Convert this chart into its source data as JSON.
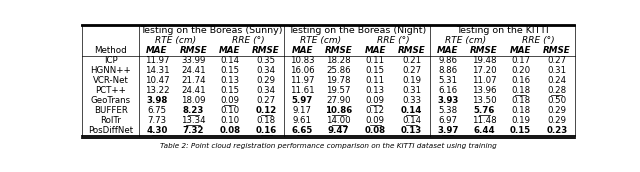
{
  "caption": "Table 2: Point cloud registration performance comparison on the KITTI dataset using training",
  "section_headers": [
    "Testing on the Boreas (Sunny)",
    "Testing on the Boreas (Night)",
    "Testing on the KITTI"
  ],
  "rte_rre_headers": [
    "RTE (cm)",
    "RRE (°)",
    "RTE (cm)",
    "RRE (°)",
    "RTE (cm)",
    "RRE (°)"
  ],
  "col_headers": [
    "Method",
    "MAE",
    "RMSE",
    "MAE",
    "RMSE",
    "MAE",
    "RMSE",
    "MAE",
    "RMSE",
    "MAE",
    "RMSE",
    "MAE",
    "RMSE"
  ],
  "rows": [
    [
      "ICP",
      "11.97",
      "33.99",
      "0.14",
      "0.35",
      "10.83",
      "18.28",
      "0.11",
      "0.21",
      "9.86",
      "19.48",
      "0.17",
      "0.27"
    ],
    [
      "HGNN++",
      "14.31",
      "24.41",
      "0.15",
      "0.34",
      "16.06",
      "25.86",
      "0.15",
      "0.27",
      "8.86",
      "17.20",
      "0.20",
      "0.31"
    ],
    [
      "VCR-Net",
      "10.47",
      "21.74",
      "0.13",
      "0.29",
      "11.97",
      "19.78",
      "0.11",
      "0.19",
      "5.31",
      "11.07",
      "0.16",
      "0.24"
    ],
    [
      "PCT++",
      "13.22",
      "24.41",
      "0.15",
      "0.34",
      "11.61",
      "19.57",
      "0.13",
      "0.31",
      "6.16",
      "13.96",
      "0.18",
      "0.28"
    ],
    [
      "GeoTrans",
      "3.98",
      "18.09",
      "0.09",
      "0.27",
      "5.97",
      "27.90",
      "0.09",
      "0.33",
      "3.93",
      "13.50",
      "0.18",
      "0.50"
    ],
    [
      "BUFFER",
      "6.75",
      "8.23",
      "0.10",
      "0.12",
      "9.17",
      "10.86",
      "0.12",
      "0.14",
      "5.38",
      "5.76",
      "0.18",
      "0.29"
    ],
    [
      "RoITr",
      "7.73",
      "13.34",
      "0.10",
      "0.18",
      "9.61",
      "14.00",
      "0.09",
      "0.14",
      "6.97",
      "11.48",
      "0.19",
      "0.29"
    ],
    [
      "PosDiffNet",
      "4.30",
      "7.32",
      "0.08",
      "0.16",
      "6.65",
      "9.47",
      "0.08",
      "0.13",
      "3.97",
      "6.44",
      "0.15",
      "0.23"
    ]
  ],
  "bold": [
    [
      false,
      false,
      false,
      false,
      false,
      false,
      false,
      false,
      false,
      false,
      false,
      false,
      false
    ],
    [
      false,
      false,
      false,
      false,
      false,
      false,
      false,
      false,
      false,
      false,
      false,
      false,
      false
    ],
    [
      false,
      false,
      false,
      false,
      false,
      false,
      false,
      false,
      false,
      false,
      false,
      false,
      false
    ],
    [
      false,
      false,
      false,
      false,
      false,
      false,
      false,
      false,
      false,
      false,
      false,
      false,
      false
    ],
    [
      false,
      true,
      false,
      false,
      false,
      true,
      false,
      false,
      false,
      true,
      false,
      false,
      false
    ],
    [
      false,
      false,
      true,
      false,
      true,
      false,
      true,
      false,
      true,
      false,
      true,
      false,
      false
    ],
    [
      false,
      false,
      false,
      false,
      false,
      false,
      false,
      false,
      false,
      false,
      false,
      false,
      false
    ],
    [
      false,
      true,
      true,
      true,
      true,
      true,
      true,
      true,
      true,
      true,
      true,
      true,
      true
    ]
  ],
  "underline": [
    [
      false,
      false,
      false,
      false,
      false,
      false,
      false,
      false,
      false,
      false,
      false,
      false,
      false
    ],
    [
      false,
      false,
      false,
      false,
      false,
      false,
      false,
      false,
      false,
      false,
      false,
      false,
      false
    ],
    [
      false,
      false,
      false,
      false,
      false,
      false,
      false,
      false,
      false,
      false,
      false,
      false,
      false
    ],
    [
      false,
      false,
      false,
      false,
      false,
      false,
      false,
      false,
      false,
      false,
      false,
      true,
      true
    ],
    [
      false,
      false,
      false,
      true,
      false,
      false,
      false,
      true,
      false,
      false,
      false,
      false,
      false
    ],
    [
      false,
      false,
      true,
      false,
      true,
      false,
      true,
      false,
      true,
      false,
      true,
      false,
      false
    ],
    [
      false,
      false,
      true,
      false,
      false,
      false,
      true,
      true,
      true,
      false,
      false,
      false,
      false
    ],
    [
      false,
      true,
      false,
      false,
      true,
      true,
      false,
      false,
      false,
      true,
      true,
      false,
      false
    ]
  ],
  "bg_color": "#ffffff",
  "figsize": [
    6.4,
    1.72
  ],
  "dpi": 100
}
